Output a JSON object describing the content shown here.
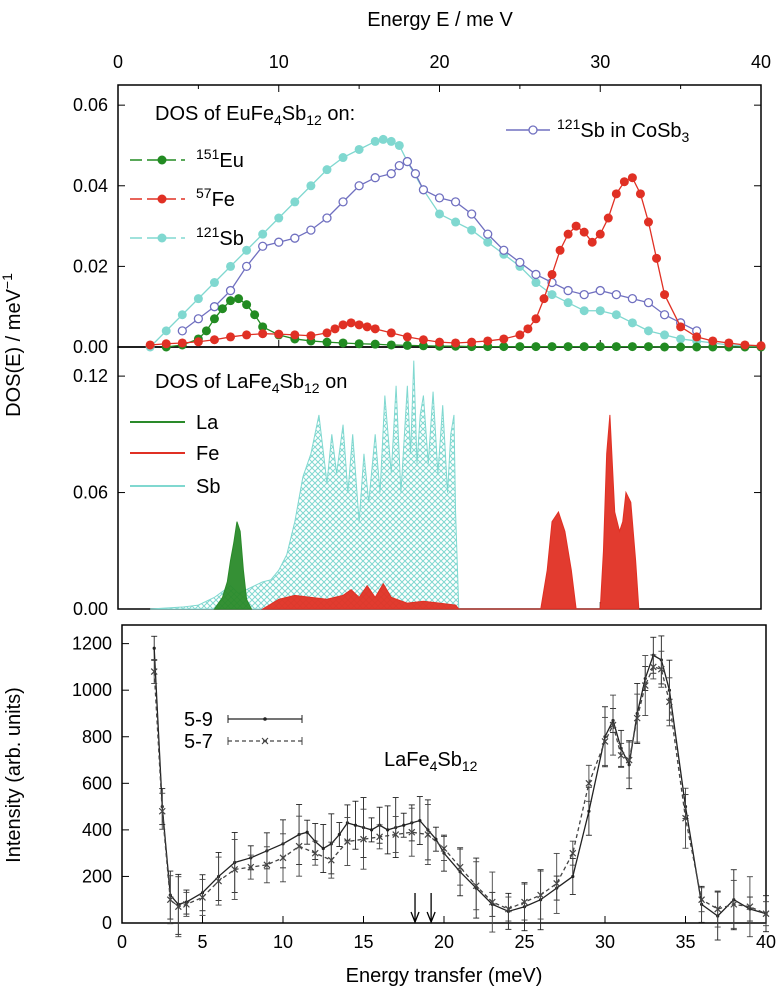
{
  "top_axis": {
    "label": "Energy E /  me V",
    "ticks": [
      "0",
      "10",
      "20",
      "30",
      "40"
    ]
  },
  "shared_ylabel": "DOS(E) / meV",
  "shared_ylabel_sup": "−1",
  "chart_data": [
    {
      "type": "line",
      "panel": "top",
      "title": "DOS of EuFe4Sb12 on:",
      "title_parts": {
        "pre": "DOS of EuFe",
        "s1": "4",
        "mid": "Sb",
        "s2": "12",
        "post": " on:"
      },
      "xlim": [
        0,
        40
      ],
      "ylim": [
        0,
        0.065
      ],
      "y_ticks": [
        "0.00",
        "0.02",
        "0.04",
        "0.06"
      ],
      "legend_ref": {
        "sup": "121",
        "text": "Sb in CoSb",
        "sub": "3"
      },
      "series": [
        {
          "name": "151Eu",
          "sup": "151",
          "label": "Eu",
          "color": "#228b22",
          "marker": "filled",
          "x": [
            3,
            4,
            5,
            5.5,
            6,
            6.5,
            7,
            7.5,
            8,
            8.5,
            9,
            10,
            11,
            12,
            13,
            14,
            15,
            16,
            17,
            18,
            19,
            20,
            21,
            22,
            23,
            24,
            25,
            26,
            27,
            28,
            29,
            30,
            31,
            32,
            33,
            34,
            35,
            36,
            37,
            38,
            39,
            40
          ],
          "y": [
            0.0,
            0.0005,
            0.002,
            0.004,
            0.007,
            0.0095,
            0.0115,
            0.012,
            0.0105,
            0.008,
            0.005,
            0.003,
            0.002,
            0.0015,
            0.0012,
            0.001,
            0.0008,
            0.0007,
            0.0005,
            0.0004,
            0.0003,
            0.0002,
            0.0002,
            0.0001,
            0.0001,
            0.0001,
            0.0001,
            0.0001,
            0.0001,
            0.0001,
            0.0001,
            0.0001,
            0.0001,
            0.0001,
            0.0001,
            0.0,
            0.0,
            0.0,
            0.0,
            0.0,
            0.0,
            0.0
          ]
        },
        {
          "name": "57Fe",
          "sup": "57",
          "label": "Fe",
          "color": "#e03024",
          "marker": "filled",
          "x": [
            2,
            3,
            4,
            5,
            6,
            7,
            8,
            9,
            10,
            11,
            12,
            13,
            13.5,
            14,
            14.5,
            15,
            15.5,
            16,
            17,
            18,
            19,
            20,
            21,
            22,
            23,
            24,
            25,
            25.5,
            26,
            26.5,
            27,
            27.5,
            28,
            28.5,
            29,
            29.5,
            30,
            30.5,
            31,
            31.5,
            32,
            32.5,
            33,
            33.5,
            34,
            35,
            36,
            37,
            38,
            39,
            40
          ],
          "y": [
            0.0005,
            0.0008,
            0.001,
            0.0013,
            0.0018,
            0.0025,
            0.003,
            0.0033,
            0.0032,
            0.003,
            0.0028,
            0.0035,
            0.0045,
            0.0055,
            0.006,
            0.0055,
            0.005,
            0.0045,
            0.0035,
            0.0025,
            0.0018,
            0.0012,
            0.001,
            0.0012,
            0.0015,
            0.002,
            0.003,
            0.0045,
            0.007,
            0.012,
            0.018,
            0.024,
            0.028,
            0.03,
            0.0285,
            0.026,
            0.028,
            0.032,
            0.038,
            0.041,
            0.042,
            0.038,
            0.031,
            0.022,
            0.013,
            0.005,
            0.0025,
            0.0015,
            0.001,
            0.0005,
            0.0003
          ]
        },
        {
          "name": "121Sb",
          "sup": "121",
          "label": "Sb",
          "color": "#80d8d0",
          "marker": "filled",
          "x": [
            2,
            3,
            4,
            5,
            6,
            7,
            8,
            9,
            10,
            11,
            12,
            13,
            14,
            15,
            16,
            16.5,
            17,
            17.5,
            18,
            19,
            20,
            21,
            22,
            23,
            24,
            25,
            26,
            27,
            28,
            29,
            30,
            31,
            32,
            33,
            34,
            35,
            36,
            37,
            38,
            39,
            40
          ],
          "y": [
            0.0,
            0.004,
            0.008,
            0.012,
            0.016,
            0.02,
            0.024,
            0.028,
            0.032,
            0.036,
            0.04,
            0.044,
            0.047,
            0.049,
            0.051,
            0.0515,
            0.051,
            0.05,
            0.046,
            0.039,
            0.033,
            0.031,
            0.029,
            0.026,
            0.023,
            0.02,
            0.016,
            0.013,
            0.011,
            0.009,
            0.009,
            0.008,
            0.006,
            0.004,
            0.003,
            0.002,
            0.0015,
            0.001,
            0.0005,
            0.0003,
            0.0002
          ]
        },
        {
          "name": "121Sb in CoSb3",
          "color": "#7070c0",
          "marker": "open",
          "x": [
            4,
            5,
            6,
            7,
            8,
            9,
            10,
            11,
            12,
            13,
            14,
            15,
            16,
            17,
            17.5,
            18,
            18.5,
            19,
            20,
            21,
            22,
            23,
            24,
            25,
            26,
            27,
            28,
            29,
            30,
            31,
            32,
            33,
            34,
            35,
            36
          ],
          "y": [
            0.004,
            0.007,
            0.01,
            0.014,
            0.02,
            0.025,
            0.026,
            0.027,
            0.029,
            0.032,
            0.036,
            0.04,
            0.042,
            0.043,
            0.045,
            0.046,
            0.043,
            0.039,
            0.037,
            0.036,
            0.033,
            0.028,
            0.024,
            0.021,
            0.018,
            0.016,
            0.014,
            0.013,
            0.014,
            0.013,
            0.012,
            0.011,
            0.008,
            0.006,
            0.004
          ]
        }
      ]
    },
    {
      "type": "area",
      "panel": "middle",
      "title": "DOS of LaFe4Sb12 on",
      "title_parts": {
        "pre": "DOS of LaFe",
        "s1": "4",
        "mid": "Sb",
        "s2": "12",
        "post": " on"
      },
      "xlim": [
        0,
        40
      ],
      "ylim": [
        0,
        0.135
      ],
      "y_ticks": [
        "0.00",
        "0.06",
        "0.12"
      ],
      "series": [
        {
          "name": "Sb",
          "color": "#80d8d0",
          "fill": "hatch",
          "x": [
            2,
            4,
            5,
            6,
            7,
            7.5,
            8,
            8.5,
            9,
            9.5,
            10,
            10.5,
            11,
            11.5,
            12,
            12.5,
            13,
            13.3,
            13.6,
            14,
            14.3,
            14.6,
            15,
            15.3,
            15.6,
            16,
            16.3,
            16.6,
            17,
            17.3,
            17.6,
            18,
            18.2,
            18.4,
            18.6,
            18.8,
            19,
            19.3,
            19.6,
            19.9,
            20.2,
            20.5,
            20.7,
            20.9,
            21,
            21.2
          ],
          "y": [
            0.0,
            0.001,
            0.002,
            0.006,
            0.012,
            0.008,
            0.01,
            0.012,
            0.014,
            0.015,
            0.02,
            0.028,
            0.045,
            0.068,
            0.08,
            0.1,
            0.065,
            0.09,
            0.07,
            0.095,
            0.06,
            0.09,
            0.045,
            0.08,
            0.055,
            0.09,
            0.06,
            0.11,
            0.07,
            0.115,
            0.06,
            0.115,
            0.08,
            0.128,
            0.075,
            0.1,
            0.11,
            0.075,
            0.112,
            0.07,
            0.105,
            0.06,
            0.09,
            0.1,
            0.05,
            0.0
          ]
        },
        {
          "name": "La",
          "color": "#2a8a2a",
          "fill": "solid",
          "x": [
            6,
            6.5,
            6.8,
            7,
            7.2,
            7.4,
            7.6,
            7.8,
            8,
            8.3
          ],
          "y": [
            0.0,
            0.006,
            0.014,
            0.025,
            0.034,
            0.045,
            0.04,
            0.02,
            0.005,
            0.0
          ]
        },
        {
          "name": "Fe",
          "color": "#e03024",
          "fill": "solid",
          "x": [
            9,
            10,
            11,
            12,
            13,
            14,
            14.5,
            15,
            15.5,
            16,
            16.5,
            17,
            18,
            19,
            20,
            21,
            21.2,
            26.3,
            26.7,
            27,
            27.4,
            27.8,
            28.2,
            28.5,
            30,
            30.2,
            30.4,
            30.6,
            30.9,
            31.2,
            31.4,
            31.6,
            31.9,
            32.2,
            32.4
          ],
          "y": [
            0.0,
            0.005,
            0.007,
            0.006,
            0.005,
            0.007,
            0.01,
            0.006,
            0.012,
            0.006,
            0.013,
            0.006,
            0.003,
            0.004,
            0.003,
            0.002,
            0.0,
            0.0,
            0.02,
            0.045,
            0.05,
            0.04,
            0.02,
            0.0,
            0.0,
            0.03,
            0.08,
            0.1,
            0.05,
            0.04,
            0.045,
            0.06,
            0.055,
            0.025,
            0.0
          ]
        }
      ]
    },
    {
      "type": "line",
      "panel": "bottom",
      "title": "LaFe4Sb12",
      "title_parts": {
        "pre": "LaFe",
        "s1": "4",
        "mid": "Sb",
        "s2": "12",
        "post": ""
      },
      "xlabel": "Energy transfer (meV)",
      "ylabel": "Intensity (arb. units)",
      "xlim": [
        0,
        40
      ],
      "ylim": [
        0,
        1280
      ],
      "x_ticks": [
        "0",
        "5",
        "10",
        "15",
        "20",
        "25",
        "30",
        "35",
        "40"
      ],
      "y_ticks": [
        "0",
        "200",
        "400",
        "600",
        "800",
        "1000",
        "1200"
      ],
      "arrows_x": [
        18.2,
        19.2
      ],
      "series": [
        {
          "name": "5-9",
          "color": "#222222",
          "dash": "solid",
          "x": [
            2,
            2.5,
            3,
            3.5,
            4,
            5,
            6,
            7,
            8,
            9,
            10,
            11,
            11.5,
            12,
            12.5,
            13,
            13.5,
            14,
            14.5,
            15,
            15.5,
            16,
            16.5,
            17,
            17.5,
            18,
            18.5,
            19,
            19.5,
            20,
            21,
            22,
            23,
            24,
            25,
            26,
            27,
            28,
            29,
            30,
            30.5,
            31,
            31.5,
            32,
            32.5,
            33,
            33.5,
            34,
            35,
            36,
            37,
            38,
            39,
            40
          ],
          "y": [
            1180,
            500,
            120,
            80,
            90,
            130,
            200,
            260,
            280,
            310,
            340,
            380,
            390,
            350,
            320,
            340,
            380,
            430,
            420,
            410,
            400,
            420,
            400,
            410,
            420,
            430,
            440,
            400,
            360,
            300,
            220,
            150,
            80,
            50,
            70,
            100,
            150,
            200,
            480,
            800,
            870,
            750,
            680,
            900,
            1050,
            1150,
            1130,
            1000,
            500,
            80,
            30,
            100,
            60,
            40
          ]
        },
        {
          "name": "5-7",
          "color": "#444444",
          "dash": "dashed",
          "x": [
            2,
            2.5,
            3,
            3.5,
            4,
            5,
            6,
            7,
            8,
            9,
            10,
            11,
            12,
            13,
            14,
            15,
            16,
            17,
            18,
            19,
            20,
            21,
            22,
            23,
            24,
            25,
            26,
            27,
            28,
            29,
            30,
            30.5,
            31,
            31.5,
            32,
            32.5,
            33,
            33.5,
            34,
            35,
            36,
            37,
            38,
            39,
            40
          ],
          "y": [
            1080,
            480,
            100,
            70,
            80,
            110,
            180,
            230,
            240,
            250,
            280,
            330,
            300,
            270,
            350,
            360,
            370,
            380,
            390,
            380,
            320,
            240,
            160,
            90,
            60,
            90,
            120,
            170,
            300,
            600,
            780,
            850,
            720,
            700,
            880,
            1020,
            1100,
            1090,
            950,
            450,
            100,
            60,
            80,
            70,
            40
          ]
        }
      ]
    }
  ]
}
